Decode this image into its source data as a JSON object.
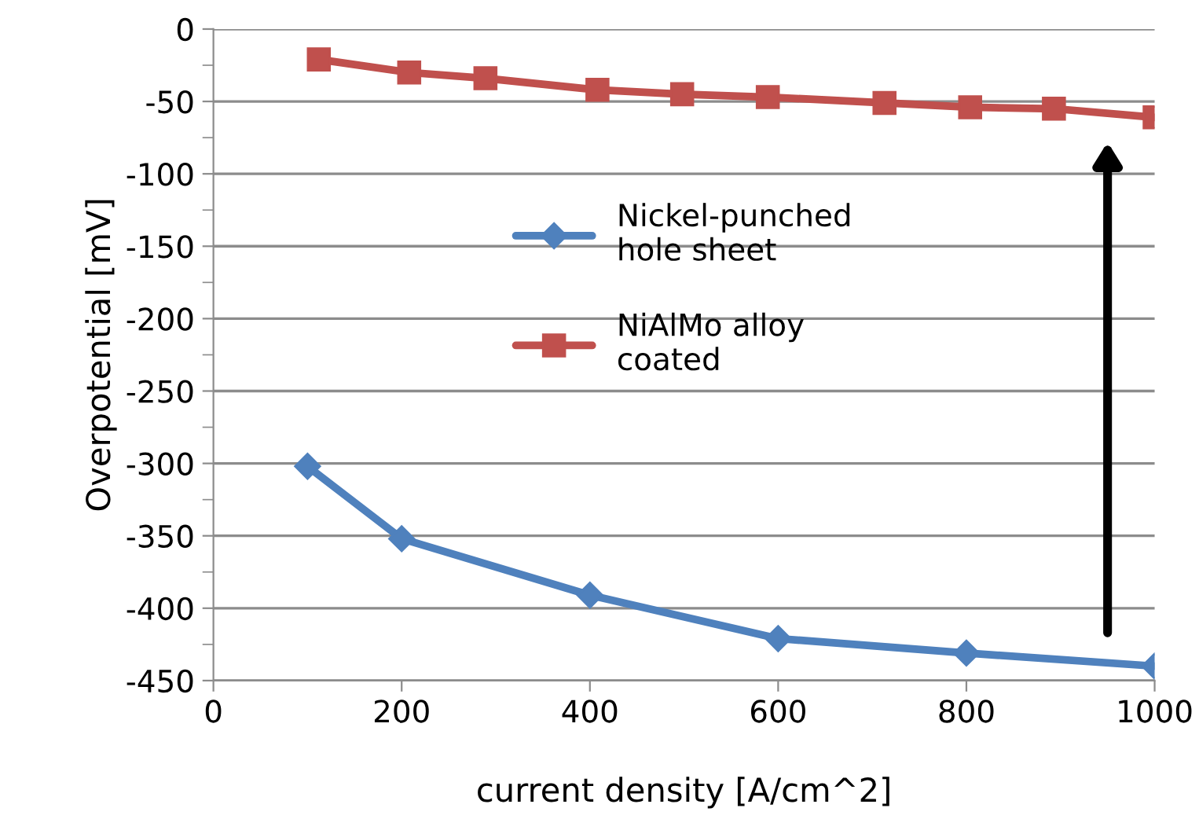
{
  "chart_data": {
    "type": "line",
    "xlabel": "current density [A/cm^2]",
    "ylabel": "Overpotential [mV]",
    "xlim": [
      0,
      1000
    ],
    "xticks": [
      0,
      200,
      400,
      600,
      800,
      1000
    ],
    "ylim": [
      -450,
      0
    ],
    "yticks": [
      0,
      -50,
      -100,
      -150,
      -200,
      -250,
      -300,
      -350,
      -400,
      -450
    ],
    "grid": "y",
    "legend": "center",
    "series": [
      {
        "name": "Nickel-punched\nhole sheet",
        "color": "#4f81bd",
        "marker": "diamond",
        "x": [
          100,
          200,
          400,
          600,
          800,
          1000
        ],
        "values": [
          -302,
          -352,
          -391,
          -421,
          -431,
          -440
        ]
      },
      {
        "name": "NiAlMo alloy\ncoated",
        "color": "#c0504d",
        "marker": "square",
        "x": [
          112,
          208,
          289,
          408,
          498,
          589,
          713,
          804,
          893,
          1000
        ],
        "values": [
          -21,
          -30,
          -34,
          -42,
          -45,
          -47,
          -51,
          -54,
          -55,
          -61
        ]
      }
    ]
  }
}
